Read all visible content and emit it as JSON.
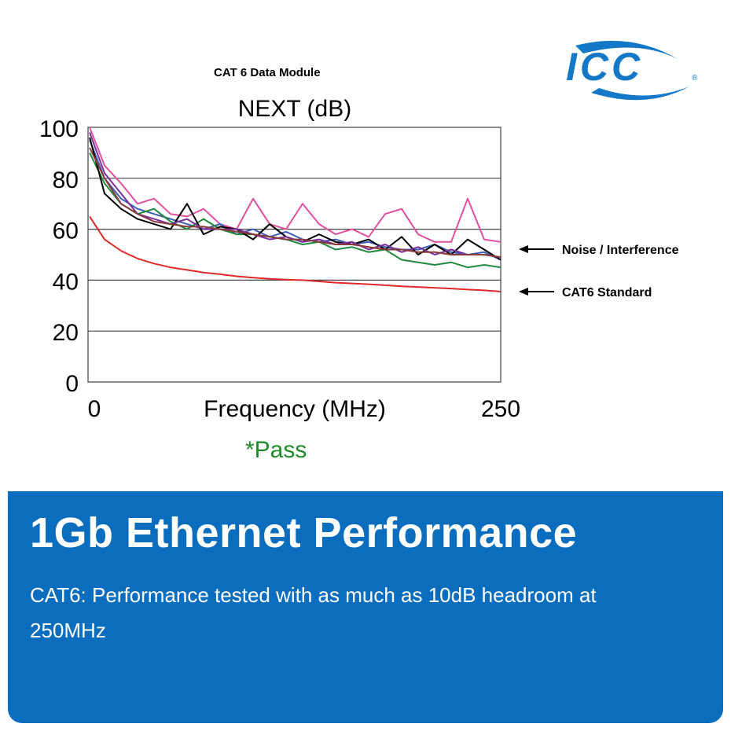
{
  "logo": {
    "text": "ICC",
    "mark": "®",
    "color": "#1478c8"
  },
  "subtitle": "CAT 6 Data Module",
  "chart_data": {
    "type": "line",
    "title": "NEXT (dB)",
    "xlabel": "Frequency (MHz)",
    "ylabel": "",
    "xlim": [
      0,
      250
    ],
    "ylim": [
      0,
      100
    ],
    "x_ticks": [
      "0",
      "250"
    ],
    "y_ticks": [
      "0",
      "20",
      "40",
      "60",
      "80",
      "100"
    ],
    "grid": "horizontal",
    "x": [
      1,
      10,
      20,
      30,
      40,
      50,
      60,
      70,
      80,
      90,
      100,
      110,
      120,
      130,
      140,
      150,
      160,
      170,
      180,
      190,
      200,
      210,
      220,
      230,
      240,
      250
    ],
    "series": [
      {
        "color": "#e0509f",
        "values": [
          100,
          85,
          78,
          70,
          72,
          66,
          65,
          68,
          62,
          60,
          72,
          62,
          60,
          70,
          62,
          58,
          60,
          57,
          66,
          68,
          58,
          55,
          55,
          72,
          56,
          55
        ]
      },
      {
        "color": "#3b5eb4",
        "values": [
          95,
          80,
          72,
          68,
          66,
          64,
          62,
          60,
          62,
          58,
          60,
          57,
          59,
          56,
          55,
          56,
          54,
          55,
          53,
          52,
          52,
          54,
          51,
          50,
          51,
          48
        ]
      },
      {
        "color": "#1f8a3c",
        "values": [
          90,
          78,
          70,
          66,
          68,
          63,
          60,
          64,
          60,
          58,
          58,
          57,
          56,
          54,
          55,
          52,
          53,
          51,
          52,
          48,
          47,
          46,
          47,
          45,
          46,
          45
        ]
      },
      {
        "color": "#000000",
        "values": [
          96,
          74,
          68,
          64,
          62,
          60,
          70,
          58,
          61,
          60,
          56,
          62,
          57,
          55,
          58,
          55,
          54,
          56,
          52,
          57,
          50,
          54,
          50,
          56,
          52,
          48
        ]
      },
      {
        "color": "#7b2f9c",
        "values": [
          98,
          82,
          74,
          66,
          64,
          62,
          64,
          60,
          60,
          60,
          58,
          56,
          57,
          55,
          56,
          54,
          55,
          52,
          54,
          51,
          53,
          50,
          52,
          50,
          50,
          49
        ]
      },
      {
        "color": "#8b3a3a",
        "values": [
          92,
          80,
          70,
          66,
          63,
          62,
          61,
          61,
          60,
          59,
          58,
          57,
          56,
          56,
          55,
          54,
          54,
          53,
          52,
          52,
          51,
          51,
          50,
          50,
          50,
          49
        ]
      },
      {
        "name": "CAT6 Standard",
        "color": "#e02828",
        "values": [
          65,
          56,
          51.5,
          48.5,
          46.5,
          45,
          44,
          43,
          42.3,
          41.5,
          41,
          40.5,
          40.2,
          40,
          39.5,
          39,
          38.7,
          38.4,
          38,
          37.6,
          37.3,
          37,
          36.7,
          36.3,
          36,
          35.5
        ]
      }
    ],
    "annotations": [
      "Noise / Interference",
      "CAT6 Standard"
    ]
  },
  "pass_label": "*Pass",
  "panel": {
    "heading": "1Gb Ethernet Performance",
    "body": "CAT6: Performance tested with as much as 10dB headroom at 250MHz",
    "color": "#0b6dbd"
  }
}
